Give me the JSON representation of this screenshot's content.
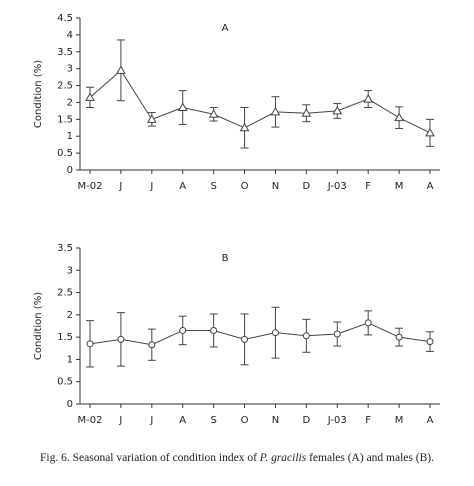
{
  "chart_data": [
    {
      "type": "line",
      "panel_label": "A",
      "ylabel": "Condition (%)",
      "marker": "triangle",
      "categories": [
        "M-02",
        "J",
        "J",
        "A",
        "S",
        "O",
        "N",
        "D",
        "J-03",
        "F",
        "M",
        "A"
      ],
      "values": [
        2.15,
        2.95,
        1.5,
        1.85,
        1.65,
        1.25,
        1.72,
        1.68,
        1.75,
        2.1,
        1.55,
        1.1
      ],
      "errors": [
        0.3,
        0.9,
        0.2,
        0.5,
        0.2,
        0.6,
        0.45,
        0.25,
        0.22,
        0.25,
        0.32,
        0.4
      ],
      "ylim": [
        0,
        4.5
      ],
      "yticks": [
        0,
        0.5,
        1,
        1.5,
        2,
        2.5,
        3,
        3.5,
        4,
        4.5
      ],
      "color": "#444444"
    },
    {
      "type": "line",
      "panel_label": "B",
      "ylabel": "Condition (%)",
      "marker": "circle",
      "categories": [
        "M-02",
        "J",
        "J",
        "A",
        "S",
        "O",
        "N",
        "D",
        "J-03",
        "F",
        "M",
        "A"
      ],
      "values": [
        1.35,
        1.45,
        1.33,
        1.65,
        1.65,
        1.45,
        1.6,
        1.53,
        1.57,
        1.82,
        1.5,
        1.4
      ],
      "errors": [
        0.52,
        0.6,
        0.35,
        0.32,
        0.37,
        0.57,
        0.57,
        0.37,
        0.27,
        0.27,
        0.2,
        0.22
      ],
      "ylim": [
        0,
        3.5
      ],
      "yticks": [
        0,
        0.5,
        1,
        1.5,
        2,
        2.5,
        3,
        3.5
      ],
      "color": "#444444"
    }
  ],
  "caption": {
    "before": "Fig. 6. Seasonal variation of condition index of ",
    "italic": "P. gracilis",
    "after": " females (A) and males (B)."
  }
}
